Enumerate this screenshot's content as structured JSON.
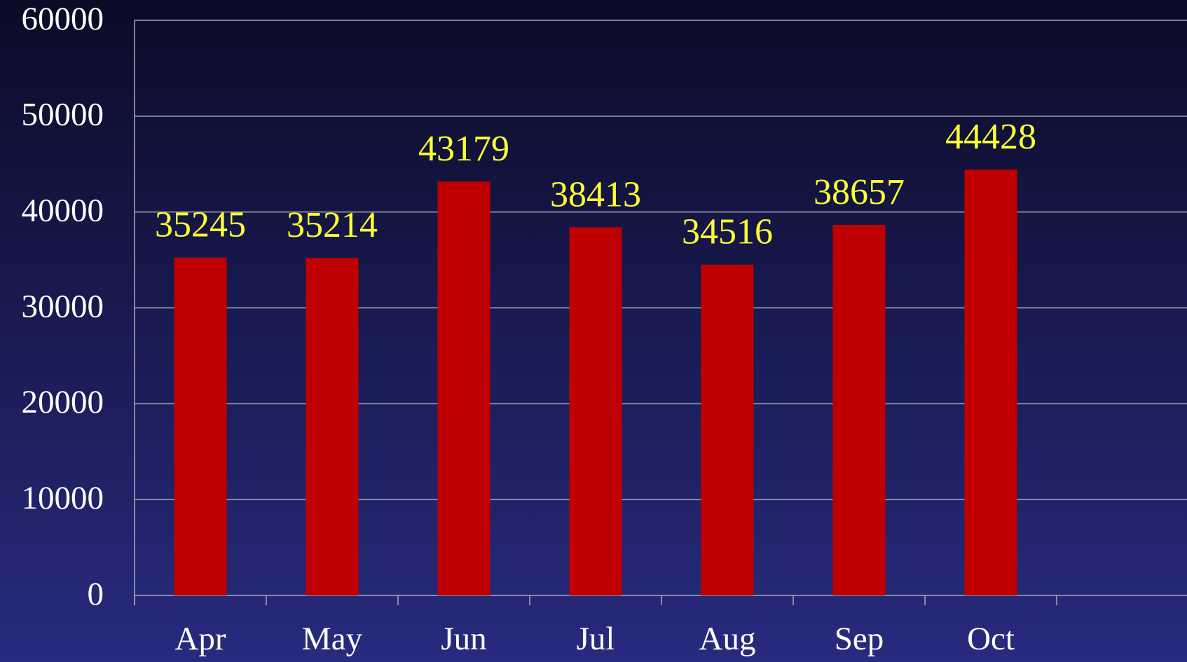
{
  "chart_data": {
    "type": "bar",
    "categories": [
      "Apr",
      "May",
      "Jun",
      "Jul",
      "Aug",
      "Sep",
      "Oct"
    ],
    "values": [
      35245,
      35214,
      43179,
      38413,
      34516,
      38657,
      44428
    ],
    "color": "#c00000",
    "label_color": "#ffff33",
    "ylim": [
      0,
      60000
    ],
    "yticks": [
      0,
      10000,
      20000,
      30000,
      40000,
      50000,
      60000
    ],
    "grid": true
  }
}
